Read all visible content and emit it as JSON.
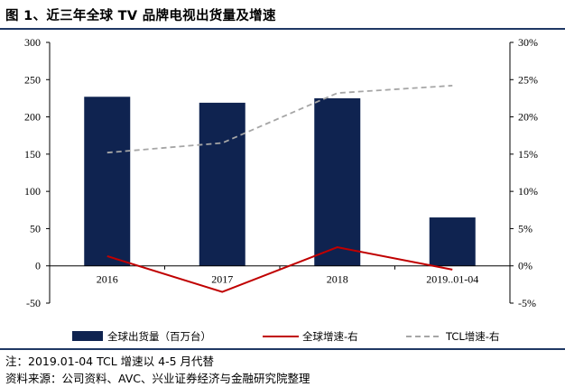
{
  "header": {
    "title": "图 1、近三年全球 TV 品牌电视出货量及增速"
  },
  "chart_data": {
    "type": "bar",
    "title": "图 1、近三年全球 TV 品牌电视出货量及增速",
    "categories": [
      "2016",
      "2017",
      "2018",
      "2019..01-04"
    ],
    "series": [
      {
        "name": "全球出货量（百万台）",
        "kind": "bar",
        "axis": "left",
        "color": "#0f2350",
        "values": [
          227,
          219,
          225,
          65
        ]
      },
      {
        "name": "全球增速-右",
        "kind": "line",
        "axis": "right",
        "color": "#c00000",
        "style": "solid",
        "values": [
          1.3,
          -3.5,
          2.5,
          -0.5
        ]
      },
      {
        "name": "TCL增速-右",
        "kind": "line",
        "axis": "right",
        "color": "#a6a6a6",
        "style": "dashed",
        "values": [
          15.2,
          16.5,
          23.2,
          24.2
        ]
      }
    ],
    "left_axis": {
      "min": -50,
      "max": 300,
      "step": 50,
      "ticks": [
        "-50",
        "0",
        "50",
        "100",
        "150",
        "200",
        "250",
        "300"
      ]
    },
    "right_axis": {
      "min": -5,
      "max": 30,
      "step": 5,
      "ticks": [
        "-5%",
        "0%",
        "5%",
        "10%",
        "15%",
        "20%",
        "25%",
        "30%"
      ]
    },
    "legend_position": "bottom",
    "grid": false
  },
  "footnotes": {
    "note": "注：2019.01-04 TCL 增速以 4-5 月代替",
    "source": "资料来源：公司资料、AVC、兴业证券经济与金融研究院整理"
  }
}
